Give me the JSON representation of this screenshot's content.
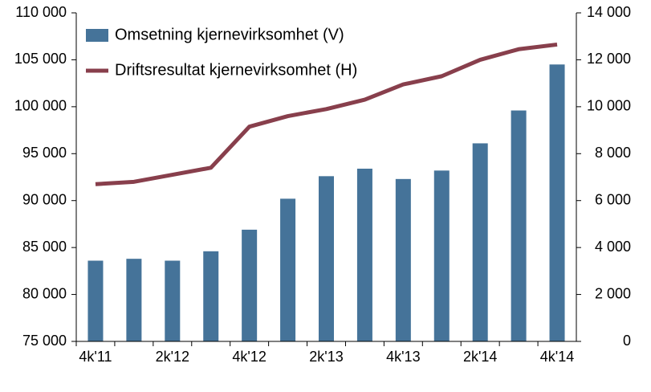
{
  "chart_data": {
    "type": "bar-line",
    "categories": [
      "4k'11",
      null,
      "2k'12",
      null,
      "4k'12",
      null,
      "2k'13",
      null,
      "4k'13",
      null,
      "2k'14",
      null,
      "4k'14"
    ],
    "series": [
      {
        "name": "Omsetning kjernevirksomhet (V)",
        "type": "bar",
        "color": "#457399",
        "values": [
          83600,
          83800,
          83600,
          84600,
          86900,
          90200,
          92600,
          93400,
          92300,
          93200,
          96100,
          99600,
          104500
        ]
      },
      {
        "name": "Driftsresultat kjernevirksomhet (H)",
        "type": "line",
        "axis": "y2",
        "color": "#883f4c",
        "values": [
          6700,
          6800,
          7100,
          7400,
          9150,
          9600,
          9900,
          10300,
          10950,
          11300,
          12000,
          12450,
          12650
        ]
      }
    ],
    "ylim": [
      75000,
      110000
    ],
    "yticks": [
      {
        "value": 75000,
        "label": "75 000"
      },
      {
        "value": 80000,
        "label": "80 000"
      },
      {
        "value": 85000,
        "label": "85 000"
      },
      {
        "value": 90000,
        "label": "90 000"
      },
      {
        "value": 95000,
        "label": "95 000"
      },
      {
        "value": 100000,
        "label": "100 000"
      },
      {
        "value": 105000,
        "label": "105 000"
      },
      {
        "value": 110000,
        "label": "110 000"
      }
    ],
    "y2lim": [
      0,
      14000
    ],
    "y2ticks": [
      0,
      {
        "value": 2000,
        "label": "2 000"
      },
      {
        "value": 4000,
        "label": "4 000"
      },
      {
        "value": 6000,
        "label": "6 000"
      },
      {
        "value": 8000,
        "label": "8 000"
      },
      {
        "value": 10000,
        "label": "10 000"
      },
      {
        "value": 12000,
        "label": "12 000"
      },
      {
        "value": 14000,
        "label": "14 000"
      }
    ],
    "legend": "top-left",
    "grid": false
  }
}
